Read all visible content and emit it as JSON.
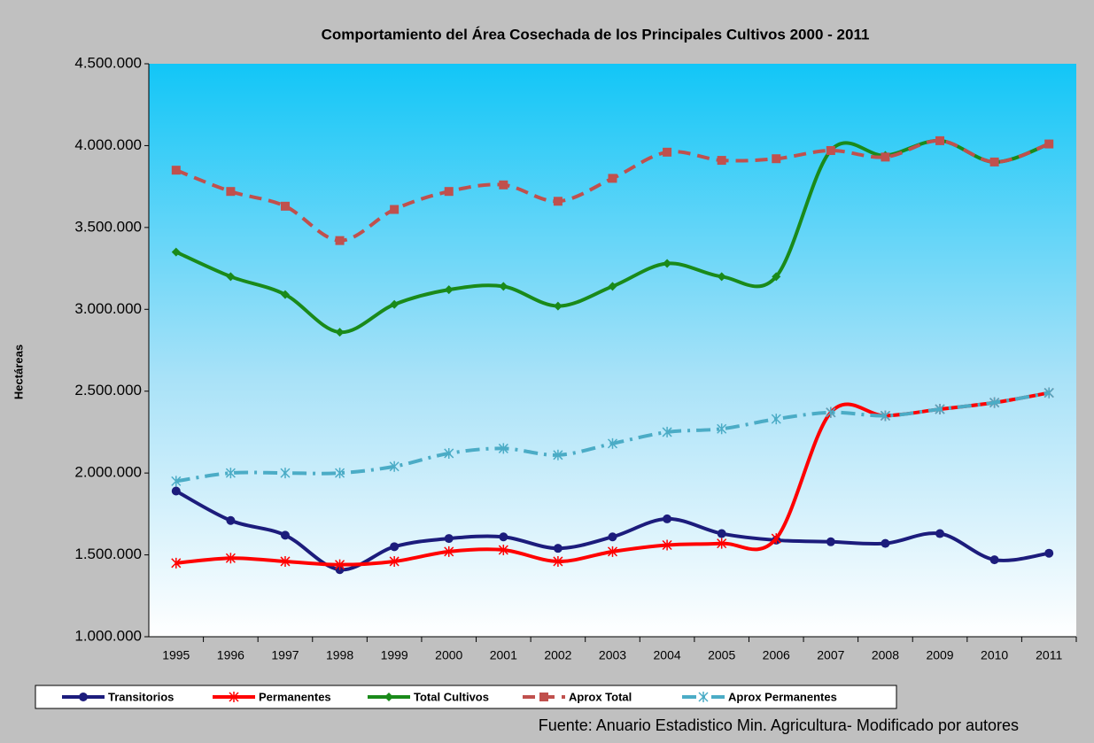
{
  "chart_data": {
    "type": "line",
    "title": "Comportamiento del Área Cosechada de los Principales Cultivos 2000 - 2011",
    "y_label": "Hectáreas",
    "source": "Fuente: Anuario Estadistico Min. Agricultura- Modificado por autores",
    "categories": [
      "1995",
      "1996",
      "1997",
      "1998",
      "1999",
      "2000",
      "2001",
      "2002",
      "2003",
      "2004",
      "2005",
      "2006",
      "2007",
      "2008",
      "2009",
      "2010",
      "2011"
    ],
    "smooth": true,
    "legend": "bottom",
    "series": [
      {
        "name": "Transitorios",
        "color": "#1c1c7c",
        "dash": "solid",
        "marker": "circle",
        "values": [
          1890000,
          1710000,
          1620000,
          1410000,
          1550000,
          1600000,
          1610000,
          1540000,
          1610000,
          1720000,
          1630000,
          1590000,
          1580000,
          1570000,
          1630000,
          1470000,
          1510000
        ]
      },
      {
        "name": "Permanentes",
        "color": "#ff0000",
        "dash": "solid",
        "marker": "asterisk",
        "values": [
          1450000,
          1480000,
          1460000,
          1440000,
          1460000,
          1520000,
          1530000,
          1460000,
          1520000,
          1560000,
          1570000,
          1600000,
          2370000,
          2350000,
          2390000,
          2430000,
          2490000
        ]
      },
      {
        "name": "Total Cultivos",
        "color": "#1a8a1a",
        "dash": "solid",
        "marker": "diamond",
        "values": [
          3350000,
          3200000,
          3090000,
          2860000,
          3030000,
          3120000,
          3140000,
          3020000,
          3140000,
          3280000,
          3200000,
          3200000,
          3970000,
          3940000,
          4030000,
          3900000,
          4010000
        ]
      },
      {
        "name": "Aprox Total",
        "color": "#c0504d",
        "dash": "dash",
        "marker": "square",
        "values": [
          3850000,
          3720000,
          3630000,
          3420000,
          3610000,
          3720000,
          3760000,
          3660000,
          3800000,
          3960000,
          3910000,
          3920000,
          3970000,
          3930000,
          4030000,
          3900000,
          4010000
        ]
      },
      {
        "name": "Aprox Permanentes",
        "color": "#4bacc6",
        "dash": "dashdot",
        "marker": "asterisk",
        "values": [
          1950000,
          2000000,
          2000000,
          2000000,
          2040000,
          2120000,
          2150000,
          2110000,
          2180000,
          2250000,
          2270000,
          2330000,
          2370000,
          2350000,
          2390000,
          2430000,
          2490000
        ]
      }
    ],
    "ylim": [
      1000000,
      4500000
    ],
    "yticks": [
      {
        "value": 1000000,
        "label": "1.000.000"
      },
      {
        "value": 1500000,
        "label": "1.500.000"
      },
      {
        "value": 2000000,
        "label": "2.000.000"
      },
      {
        "value": 2500000,
        "label": "2.500.000"
      },
      {
        "value": 3000000,
        "label": "3.000.000"
      },
      {
        "value": 3500000,
        "label": "3.500.000"
      },
      {
        "value": 4000000,
        "label": "4.000.000"
      },
      {
        "value": 4500000,
        "label": "4.500.000"
      }
    ]
  }
}
